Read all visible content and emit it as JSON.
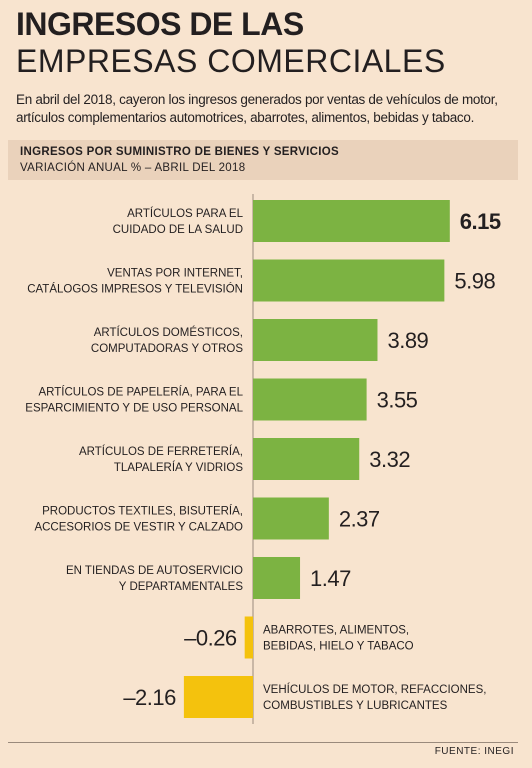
{
  "title_line1": "INGRESOS DE LAS",
  "title_line2": "EMPRESAS COMERCIALES",
  "intro": "En abril del 2018, cayeron los ingresos generados por ventas de vehículos de motor, artículos complementarios automotrices, abarrotes, alimentos, bebidas y tabaco.",
  "source": "FUENTE: INEGI",
  "colors": {
    "positive": "#7cb342",
    "negative": "#f4c20d",
    "background": "#f8e4cf",
    "header_band": "#ead2bb"
  },
  "chart_data": {
    "type": "bar",
    "orientation": "horizontal",
    "title": "INGRESOS POR SUMINISTRO DE BIENES Y SERVICIOS",
    "subtitle": "VARIACIÓN ANUAL % – ABRIL DEL 2018",
    "categories": [
      [
        "ARTÍCULOS PARA EL",
        "CUIDADO DE LA SALUD"
      ],
      [
        "VENTAS POR INTERNET,",
        "CATÁLOGOS IMPRESOS Y TELEVISIÓN"
      ],
      [
        "ARTÍCULOS DOMÉSTICOS,",
        "COMPUTADORAS Y OTROS"
      ],
      [
        "ARTÍCULOS DE PAPELERÍA, PARA EL",
        "ESPARCIMIENTO Y DE USO PERSONAL"
      ],
      [
        "ARTÍCULOS DE FERRETERÍA,",
        "TLAPALERÍA Y VIDRIOS"
      ],
      [
        "PRODUCTOS TEXTILES, BISUTERÍA,",
        "ACCESORIOS DE VESTIR Y CALZADO"
      ],
      [
        "EN TIENDAS DE AUTOSERVICIO",
        "Y DEPARTAMENTALES"
      ],
      [
        "ABARROTES, ALIMENTOS,",
        "BEBIDAS, HIELO Y TABACO"
      ],
      [
        "VEHÍCULOS DE MOTOR, REFACCIONES,",
        "COMBUSTIBLES Y LUBRICANTES"
      ]
    ],
    "values": [
      6.15,
      5.98,
      3.89,
      3.55,
      3.32,
      2.37,
      1.47,
      -0.26,
      -2.16
    ],
    "value_labels": [
      "6.15",
      "5.98",
      "3.89",
      "3.55",
      "3.32",
      "2.37",
      "1.47",
      "–0.26",
      "–2.16"
    ],
    "highlight_index": 0,
    "xlim": [
      -2.16,
      6.15
    ]
  }
}
